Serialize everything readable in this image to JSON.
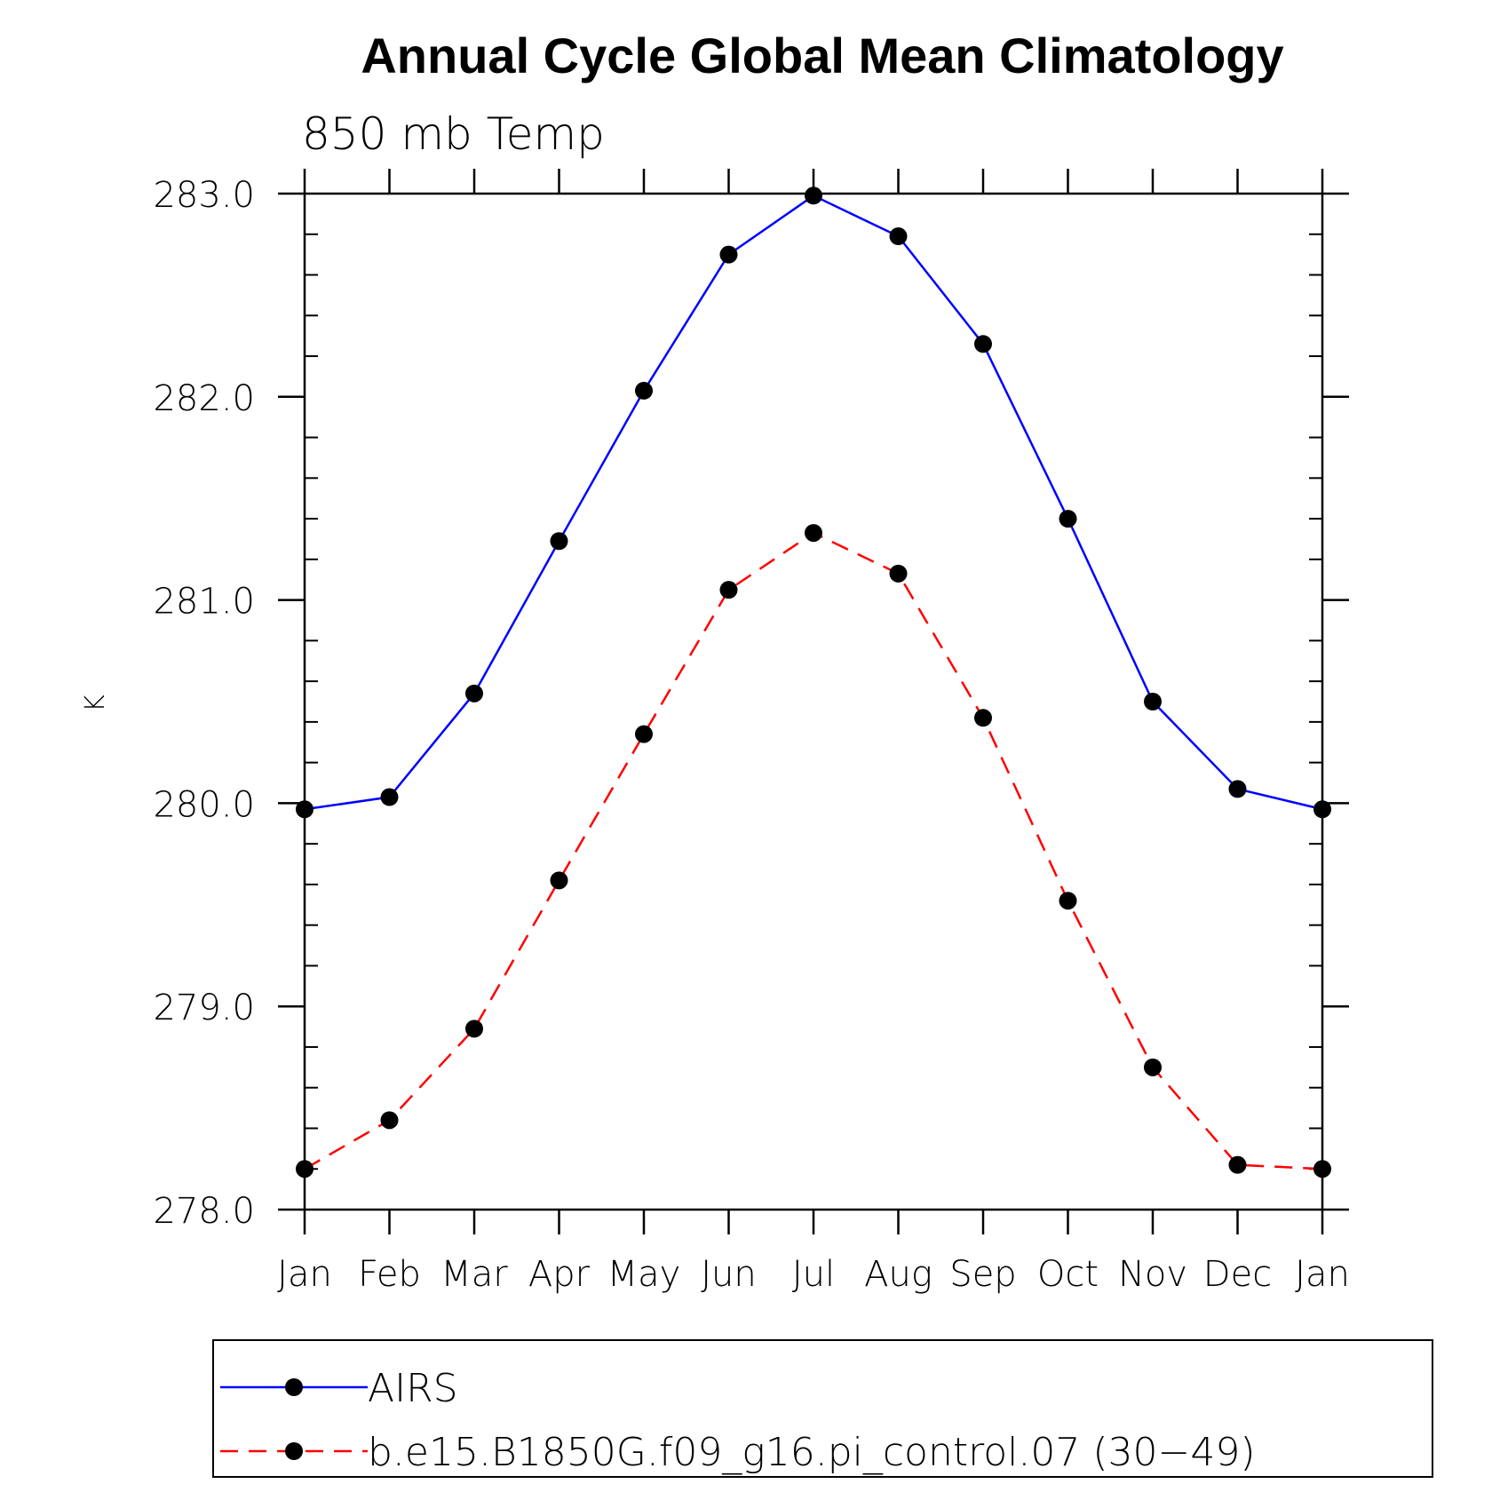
{
  "chart_data": {
    "type": "line",
    "title": "Annual Cycle Global Mean Climatology",
    "subtitle": "850 mb Temp",
    "xlabel": "",
    "ylabel": "K",
    "categories": [
      "Jan",
      "Feb",
      "Mar",
      "Apr",
      "May",
      "Jun",
      "Jul",
      "Aug",
      "Sep",
      "Oct",
      "Nov",
      "Dec",
      "Jan"
    ],
    "ylim": [
      278.0,
      283.0
    ],
    "yticks": [
      278.0,
      279.0,
      280.0,
      281.0,
      282.0,
      283.0
    ],
    "ytick_labels": [
      "278.0",
      "279.0",
      "280.0",
      "281.0",
      "282.0",
      "283.0"
    ],
    "series": [
      {
        "name": "AIRS",
        "color": "#0000ff",
        "style": "solid",
        "values": [
          279.97,
          280.03,
          280.54,
          281.29,
          282.03,
          282.7,
          282.99,
          282.79,
          282.26,
          281.4,
          280.5,
          280.07,
          279.97
        ]
      },
      {
        "name": "b.e15.B1850G.f09_g16.pi_control.07 (30−49)",
        "color": "#ff0000",
        "style": "dashed",
        "values": [
          278.2,
          278.44,
          278.89,
          279.62,
          280.34,
          281.05,
          281.33,
          281.13,
          280.42,
          279.52,
          278.7,
          278.22,
          278.2
        ]
      }
    ],
    "legend_position": "bottom"
  },
  "colors": {
    "marker": "#000000",
    "axis": "#000000"
  }
}
